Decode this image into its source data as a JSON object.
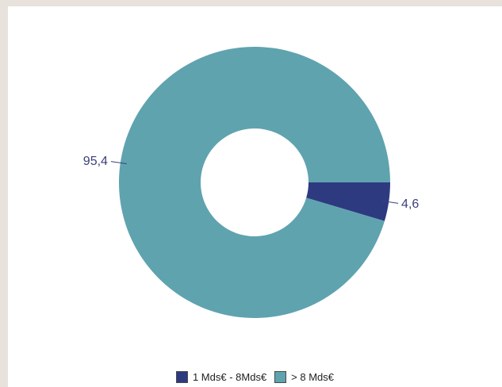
{
  "chart_data": {
    "type": "pie",
    "donut": true,
    "categories": [
      "1 Mds€ - 8Mds€",
      "> 8 Mds€"
    ],
    "values": [
      4.6,
      95.4
    ],
    "value_labels": [
      "4,6",
      "95,4"
    ],
    "colors": [
      "#2e3a80",
      "#5fa3af"
    ],
    "title": "",
    "legend_position": "bottom-center"
  }
}
